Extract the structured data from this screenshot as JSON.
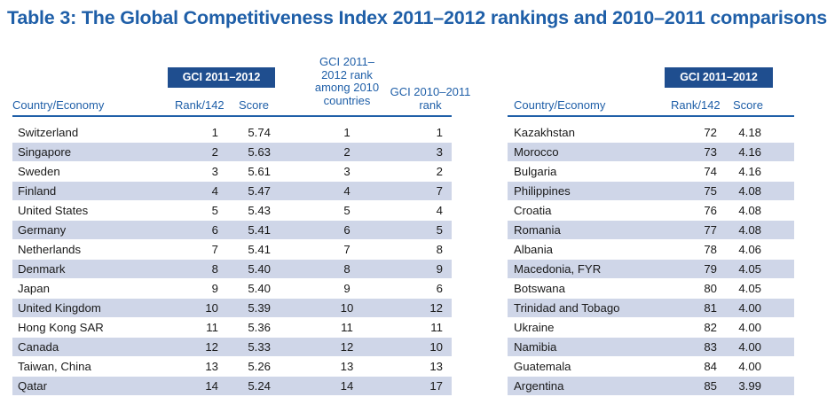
{
  "title": "Table 3: The Global Competitiveness Index 2011–2012 rankings and 2010–2011 comparisons",
  "left_table": {
    "badge": "GCI 2011–2012",
    "headers": {
      "country": "Country/Economy",
      "rank": "Rank/142",
      "score": "Score",
      "rank_among_l1": "GCI 2011–",
      "rank_among_l2": "2012 rank",
      "rank_among_l3": "among 2010",
      "rank_among_l4": "countries",
      "prev_rank_l1": "GCI 2010–2011",
      "prev_rank_l2": "rank"
    },
    "rows": [
      {
        "country": "Switzerland",
        "rank": "1",
        "score": "5.74",
        "rank_among": "1",
        "prev_rank": "1"
      },
      {
        "country": "Singapore",
        "rank": "2",
        "score": "5.63",
        "rank_among": "2",
        "prev_rank": "3"
      },
      {
        "country": "Sweden",
        "rank": "3",
        "score": "5.61",
        "rank_among": "3",
        "prev_rank": "2"
      },
      {
        "country": "Finland",
        "rank": "4",
        "score": "5.47",
        "rank_among": "4",
        "prev_rank": "7"
      },
      {
        "country": "United States",
        "rank": "5",
        "score": "5.43",
        "rank_among": "5",
        "prev_rank": "4"
      },
      {
        "country": "Germany",
        "rank": "6",
        "score": "5.41",
        "rank_among": "6",
        "prev_rank": "5"
      },
      {
        "country": "Netherlands",
        "rank": "7",
        "score": "5.41",
        "rank_among": "7",
        "prev_rank": "8"
      },
      {
        "country": "Denmark",
        "rank": "8",
        "score": "5.40",
        "rank_among": "8",
        "prev_rank": "9"
      },
      {
        "country": "Japan",
        "rank": "9",
        "score": "5.40",
        "rank_among": "9",
        "prev_rank": "6"
      },
      {
        "country": "United Kingdom",
        "rank": "10",
        "score": "5.39",
        "rank_among": "10",
        "prev_rank": "12"
      },
      {
        "country": "Hong Kong SAR",
        "rank": "11",
        "score": "5.36",
        "rank_among": "11",
        "prev_rank": "11"
      },
      {
        "country": "Canada",
        "rank": "12",
        "score": "5.33",
        "rank_among": "12",
        "prev_rank": "10"
      },
      {
        "country": "Taiwan, China",
        "rank": "13",
        "score": "5.26",
        "rank_among": "13",
        "prev_rank": "13"
      },
      {
        "country": "Qatar",
        "rank": "14",
        "score": "5.24",
        "rank_among": "14",
        "prev_rank": "17"
      }
    ]
  },
  "right_table": {
    "badge": "GCI 2011–2012",
    "headers": {
      "country": "Country/Economy",
      "rank": "Rank/142",
      "score": "Score"
    },
    "rows": [
      {
        "country": "Kazakhstan",
        "rank": "72",
        "score": "4.18"
      },
      {
        "country": "Morocco",
        "rank": "73",
        "score": "4.16"
      },
      {
        "country": "Bulgaria",
        "rank": "74",
        "score": "4.16"
      },
      {
        "country": "Philippines",
        "rank": "75",
        "score": "4.08"
      },
      {
        "country": "Croatia",
        "rank": "76",
        "score": "4.08"
      },
      {
        "country": "Romania",
        "rank": "77",
        "score": "4.08"
      },
      {
        "country": "Albania",
        "rank": "78",
        "score": "4.06"
      },
      {
        "country": "Macedonia, FYR",
        "rank": "79",
        "score": "4.05"
      },
      {
        "country": "Botswana",
        "rank": "80",
        "score": "4.05"
      },
      {
        "country": "Trinidad and Tobago",
        "rank": "81",
        "score": "4.00"
      },
      {
        "country": "Ukraine",
        "rank": "82",
        "score": "4.00"
      },
      {
        "country": "Namibia",
        "rank": "83",
        "score": "4.00"
      },
      {
        "country": "Guatemala",
        "rank": "84",
        "score": "4.00"
      },
      {
        "country": "Argentina",
        "rank": "85",
        "score": "3.99"
      }
    ]
  },
  "colors": {
    "title": "#1f5fa8",
    "badge_bg": "#1f4e8f",
    "alt_row": "#cfd6e8",
    "rule": "#1f5fa8"
  }
}
